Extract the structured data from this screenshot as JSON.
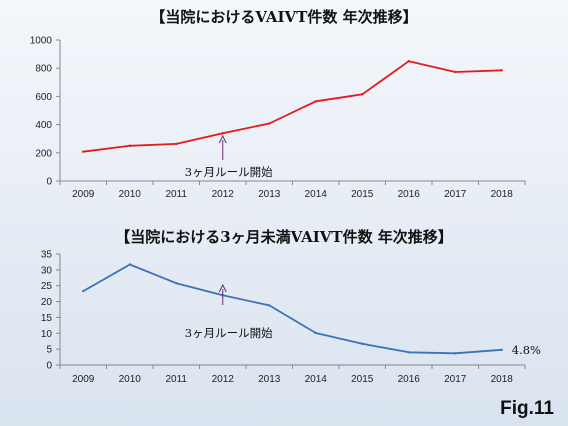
{
  "fig_label": "Fig.11",
  "chart_data": [
    {
      "type": "line",
      "title": "【当院におけるVAIVT件数 年次推移】",
      "categories": [
        "2009",
        "2010",
        "2011",
        "2012",
        "2013",
        "2014",
        "2015",
        "2016",
        "2017",
        "2018"
      ],
      "series": [
        {
          "values": [
            208,
            250,
            263,
            338,
            408,
            565,
            615,
            850,
            773,
            785
          ],
          "color": "#e41a1c"
        }
      ],
      "ylim": [
        0,
        1000
      ],
      "yticks": [
        0,
        200,
        400,
        600,
        800,
        1000
      ],
      "annotation": {
        "text": "3ヶ月ルール開始",
        "category": "2012"
      },
      "grid": false
    },
    {
      "type": "line",
      "title": "【当院における3ヶ月未満VAIVT件数 年次推移】",
      "categories": [
        "2009",
        "2010",
        "2011",
        "2012",
        "2013",
        "2014",
        "2015",
        "2016",
        "2017",
        "2018"
      ],
      "series": [
        {
          "values": [
            23.3,
            31.7,
            25.8,
            22.0,
            18.8,
            10.1,
            6.7,
            4.0,
            3.7,
            4.8
          ],
          "color": "#3a74b6"
        }
      ],
      "ylim": [
        0,
        35
      ],
      "yticks": [
        0,
        5,
        10,
        15,
        20,
        25,
        30,
        35
      ],
      "annotation": {
        "text": "3ヶ月ルール開始",
        "category": "2012"
      },
      "end_label": "4.8%",
      "grid": false
    }
  ]
}
